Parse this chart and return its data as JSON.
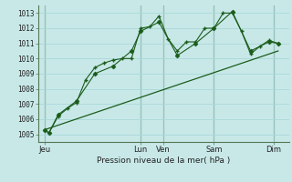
{
  "background_color": "#c8e8e8",
  "grid_color": "#aad8d8",
  "line_color": "#1a5c1a",
  "title": "Pression niveau de la mer( hPa )",
  "ylim": [
    1004.5,
    1013.5
  ],
  "yticks": [
    1005,
    1006,
    1007,
    1008,
    1009,
    1010,
    1011,
    1012,
    1013
  ],
  "xlim": [
    -0.2,
    27.2
  ],
  "day_labels": [
    "Jeu",
    "Lun",
    "Ven",
    "Sam",
    "Dim"
  ],
  "day_positions": [
    0.5,
    11,
    13.5,
    19,
    25.5
  ],
  "day_vlines": [
    0.5,
    11,
    13.5,
    19,
    25.5
  ],
  "series1_x": [
    0.5,
    1,
    2,
    3,
    4,
    5,
    6,
    7,
    8,
    9,
    10,
    11,
    12,
    13,
    14,
    15,
    16,
    17,
    18,
    19,
    20,
    21,
    22,
    23,
    24,
    25,
    26
  ],
  "series1_y": [
    1005.3,
    1005.1,
    1006.2,
    1006.7,
    1007.1,
    1008.6,
    1009.4,
    1009.7,
    1009.9,
    1010.0,
    1010.0,
    1012.0,
    1012.1,
    1012.8,
    1011.3,
    1010.5,
    1011.1,
    1011.1,
    1012.0,
    1012.0,
    1013.0,
    1013.0,
    1011.8,
    1010.3,
    1010.8,
    1011.2,
    1011.0
  ],
  "series2_x": [
    0.5,
    1,
    2,
    4,
    6,
    8,
    10,
    11,
    13,
    15,
    17,
    19,
    21,
    23,
    25,
    26
  ],
  "series2_y": [
    1005.3,
    1005.1,
    1006.3,
    1007.2,
    1009.0,
    1009.5,
    1010.5,
    1011.8,
    1012.4,
    1010.2,
    1011.0,
    1012.0,
    1013.1,
    1010.5,
    1011.1,
    1011.0
  ],
  "trend_x": [
    0.5,
    26
  ],
  "trend_y": [
    1005.3,
    1010.5
  ]
}
